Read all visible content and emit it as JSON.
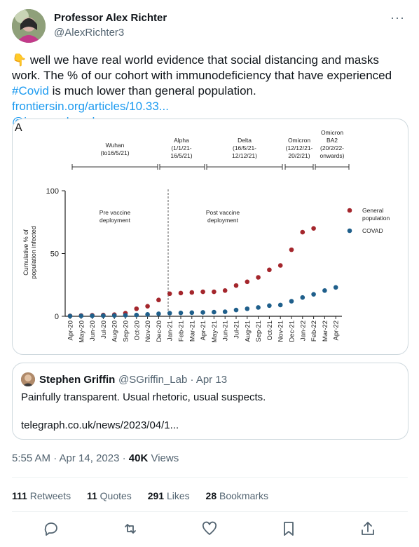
{
  "tweet": {
    "author_name": "Professor Alex Richter",
    "author_handle": "@AlexRichter3",
    "more_label": "···",
    "emoji": "👇",
    "text_1": " well we have real world evidence that social distancing and masks work. The % of our cohort with immunodeficiency that have experienced ",
    "hashtag": "#Covid",
    "text_2": " is much lower than general population. ",
    "link": "frontiersin.org/articles/10.33...",
    "mention": "@immunologydoc"
  },
  "figure": {
    "panel_label": "A",
    "periods": [
      {
        "name": "Wuhan",
        "range": "(to16/5/21)"
      },
      {
        "name": "Alpha",
        "range_1": "(1/1/21-",
        "range_2": "16/5/21)"
      },
      {
        "name": "Delta",
        "range_1": "(16/5/21-",
        "range_2": "12/12/21)"
      },
      {
        "name": "Omicron",
        "range_1": "(12/12/21-",
        "range_2": "20/2/21)"
      },
      {
        "name_1": "Omicron",
        "name_2": "BA2",
        "range_1": "(20/2/22-",
        "range_2": "onwards)"
      }
    ],
    "annotation_pre_1": "Pre vaccine",
    "annotation_pre_2": "deployment",
    "annotation_post_1": "Post vaccine",
    "annotation_post_2": "deployment",
    "ylabel_1": "Cumulative % of",
    "ylabel_2": "population infected"
  },
  "chart_data": {
    "type": "scatter",
    "x": [
      "Apr-20",
      "May-20",
      "Jun-20",
      "Jul-20",
      "Aug-20",
      "Sep-20",
      "Oct-20",
      "Nov-20",
      "Dec-20",
      "Jan-21",
      "Feb-21",
      "Mar-21",
      "Apr-21",
      "May-21",
      "Jun-21",
      "Jul-21",
      "Aug-21",
      "Sep-21",
      "Oct-21",
      "Nov-21",
      "Dec-21",
      "Jan-22",
      "Feb-22",
      "Mar-22",
      "Apr-22"
    ],
    "yticks": [
      0,
      50,
      100
    ],
    "ylim": [
      0,
      100
    ],
    "ylabel": "Cumulative % of population infected",
    "legend_position": "right",
    "series": [
      {
        "name": "General population",
        "color": "#a4262c",
        "values": [
          0.3,
          0.6,
          0.8,
          1,
          1.3,
          2.5,
          6,
          8,
          13,
          18,
          18.5,
          19,
          19.5,
          19.5,
          20.5,
          24.5,
          27.5,
          31,
          37,
          40.5,
          53,
          67,
          70,
          null,
          null
        ]
      },
      {
        "name": "COVAD",
        "color": "#1f5f8b",
        "values": [
          0.2,
          0.3,
          0.4,
          0.5,
          0.6,
          0.8,
          1,
          1.5,
          2,
          2.5,
          2.7,
          2.9,
          3.1,
          3.3,
          3.6,
          5,
          6,
          7,
          8.5,
          9,
          12,
          15,
          17.5,
          20.5,
          23
        ]
      }
    ]
  },
  "quote": {
    "author_name": "Stephen Griffin",
    "author_handle": "@SGriffin_Lab · Apr 13",
    "text": "Painfully transparent. Usual rhetoric, usual suspects.",
    "link": "telegraph.co.uk/news/2023/04/1..."
  },
  "meta": {
    "time": "5:55 AM · Apr 14, 2023 · ",
    "views_count": "40K",
    "views_label": " Views"
  },
  "stats": {
    "retweets_count": "111",
    "retweets_label": "Retweets",
    "quotes_count": "11",
    "quotes_label": "Quotes",
    "likes_count": "291",
    "likes_label": "Likes",
    "bookmarks_count": "28",
    "bookmarks_label": "Bookmarks"
  },
  "actions": [
    "reply-icon",
    "retweet-icon",
    "like-icon",
    "bookmark-icon",
    "share-icon"
  ]
}
